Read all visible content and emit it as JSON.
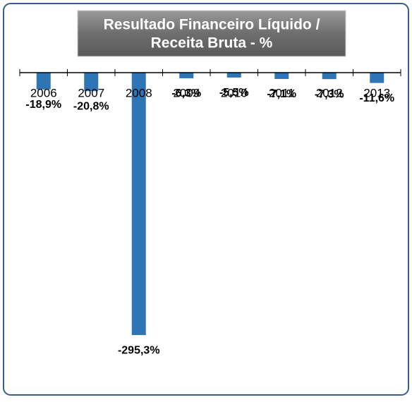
{
  "chart_data": {
    "type": "bar",
    "title": "Resultado Financeiro Líquido /",
    "subtitle": "Receita Bruta - %",
    "categories": [
      "2006",
      "2007",
      "2008",
      "2009",
      "2010",
      "2011",
      "2012",
      "2013"
    ],
    "values": [
      -18.9,
      -20.8,
      -295.3,
      -6.3,
      -5.5,
      -7.1,
      -7.3,
      -11.6
    ],
    "value_labels": [
      "-18,9%",
      "-20,8%",
      "-295,3%",
      "-6,3%",
      "-5,5%",
      "-7,1%",
      "-7,3%",
      "-11,6%"
    ],
    "color": "#2e75b6",
    "ylim": [
      -300,
      0
    ]
  }
}
